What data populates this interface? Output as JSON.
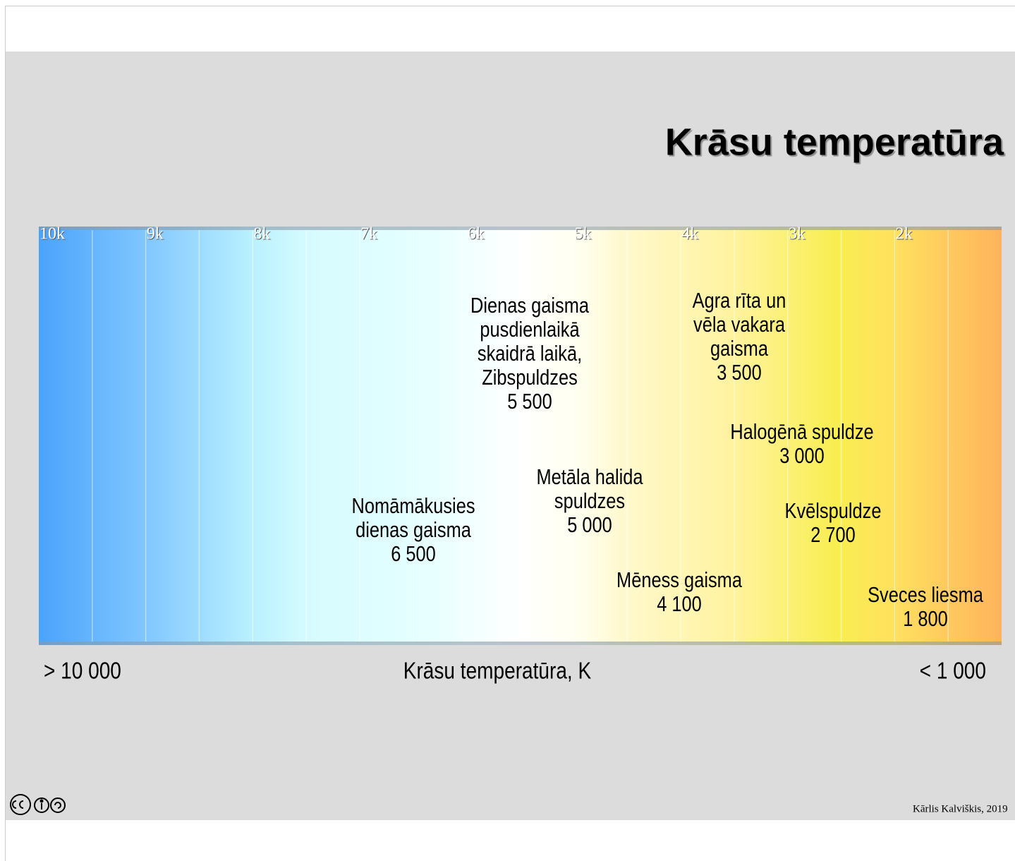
{
  "title": "Krāsu temperatūra",
  "scale_ticks": [
    "10k",
    "9k",
    "8k",
    "7k",
    "6k",
    "5k",
    "4k",
    "3k",
    "2k"
  ],
  "annotations": [
    {
      "lines": [
        "Dienas gaisma",
        "pusdienlaikā",
        "skaidrā laikā,",
        "Zibspuldzes"
      ],
      "value": "5 500"
    },
    {
      "lines": [
        "Agra rīta un",
        "vēla vakara",
        "gaisma"
      ],
      "value": "3 500"
    },
    {
      "lines": [
        "Halogēnā spuldze"
      ],
      "value": "3 000"
    },
    {
      "lines": [
        "Metāla halida",
        "spuldzes"
      ],
      "value": "5 000"
    },
    {
      "lines": [
        "Nomāmākusies",
        "dienas gaisma"
      ],
      "value": "6 500"
    },
    {
      "lines": [
        "Kvēlspuldze"
      ],
      "value": "2 700"
    },
    {
      "lines": [
        "Mēness gaisma"
      ],
      "value": "4 100"
    },
    {
      "lines": [
        "Sveces liesma"
      ],
      "value": "1 800"
    }
  ],
  "axis": {
    "left": "> 10 000",
    "label": "Krāsu temperatūra, K",
    "right": "< 1 000"
  },
  "footer": "Kārlis Kalviškis, 2019"
}
